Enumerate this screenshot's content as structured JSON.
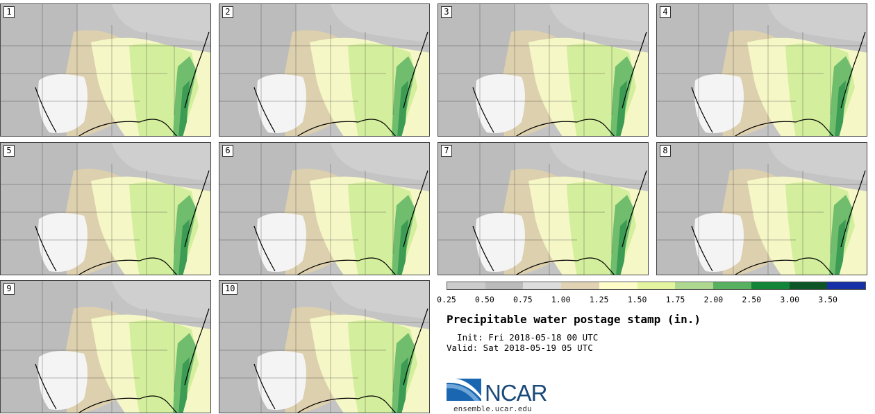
{
  "panels": [
    "1",
    "2",
    "3",
    "4",
    "5",
    "6",
    "7",
    "8",
    "9",
    "10"
  ],
  "colorbar": {
    "colors": [
      "#cccccc",
      "#bbbbbb",
      "#dddddd",
      "#e0d2b2",
      "#fdfdc9",
      "#e3f59f",
      "#aed88f",
      "#58b061",
      "#128538",
      "#0d5527",
      "#1730a8"
    ],
    "tick_labels": [
      "0.25",
      "0.50",
      "0.75",
      "1.00",
      "1.25",
      "1.50",
      "1.75",
      "2.00",
      "2.50",
      "3.00",
      "3.50"
    ]
  },
  "title": "Precipitable water postage stamp (in.)",
  "init_label": "  Init: Fri 2018-05-18 00 UTC",
  "valid_label": "Valid: Sat 2018-05-19 05 UTC",
  "logo_text": "NCAR",
  "url": "ensemble.ucar.edu"
}
